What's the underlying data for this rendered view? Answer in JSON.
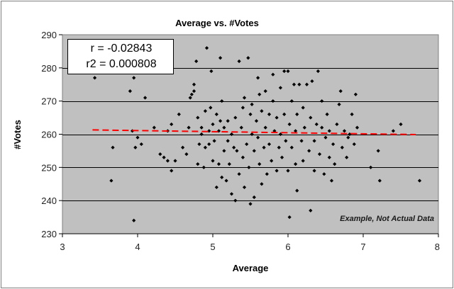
{
  "chart_data": {
    "type": "scatter",
    "title": "Average vs. #Votes",
    "xlabel": "Average",
    "ylabel": "#Votes",
    "xlim": [
      3,
      8
    ],
    "ylim": [
      230,
      290
    ],
    "xticks": [
      3,
      4,
      5,
      6,
      7,
      8
    ],
    "yticks": [
      230,
      240,
      250,
      260,
      270,
      280,
      290
    ],
    "grid": "horizontal",
    "colors": {
      "plot_bg": "#c0c0c0",
      "marker": "#000000",
      "trend": "#ff0000",
      "gridline": "#000000"
    },
    "stats": {
      "r": "r = -0.02843",
      "r2": "r2 = 0.000808"
    },
    "annotation": "Example, Not Actual Data",
    "trendline": {
      "style": "dashed",
      "x": [
        3.4,
        7.7
      ],
      "y": [
        261.3,
        259.9
      ]
    },
    "points": [
      [
        3.43,
        277
      ],
      [
        3.65,
        246
      ],
      [
        3.67,
        256
      ],
      [
        3.9,
        273
      ],
      [
        3.93,
        261
      ],
      [
        3.95,
        277
      ],
      [
        3.95,
        234
      ],
      [
        3.97,
        256
      ],
      [
        4.0,
        259
      ],
      [
        4.05,
        257
      ],
      [
        4.1,
        271
      ],
      [
        4.22,
        262
      ],
      [
        4.3,
        254
      ],
      [
        4.35,
        253
      ],
      [
        4.4,
        261
      ],
      [
        4.4,
        252
      ],
      [
        4.45,
        249
      ],
      [
        4.45,
        263
      ],
      [
        4.5,
        252
      ],
      [
        4.55,
        266
      ],
      [
        4.6,
        256
      ],
      [
        4.65,
        254
      ],
      [
        4.68,
        262
      ],
      [
        4.7,
        271
      ],
      [
        4.72,
        272
      ],
      [
        4.75,
        275
      ],
      [
        4.75,
        273
      ],
      [
        4.78,
        282
      ],
      [
        4.8,
        265
      ],
      [
        4.8,
        251
      ],
      [
        4.82,
        257
      ],
      [
        4.85,
        260
      ],
      [
        4.85,
        262
      ],
      [
        4.88,
        250
      ],
      [
        4.9,
        267
      ],
      [
        4.9,
        256
      ],
      [
        4.92,
        286
      ],
      [
        4.95,
        257
      ],
      [
        4.95,
        261
      ],
      [
        4.97,
        268
      ],
      [
        4.98,
        279
      ],
      [
        5.0,
        252
      ],
      [
        5.0,
        263
      ],
      [
        5.02,
        258
      ],
      [
        5.05,
        244
      ],
      [
        5.05,
        266
      ],
      [
        5.08,
        251
      ],
      [
        5.08,
        261
      ],
      [
        5.1,
        283
      ],
      [
        5.1,
        264
      ],
      [
        5.12,
        247
      ],
      [
        5.12,
        270
      ],
      [
        5.15,
        255
      ],
      [
        5.15,
        262
      ],
      [
        5.18,
        246
      ],
      [
        5.2,
        264
      ],
      [
        5.2,
        258
      ],
      [
        5.22,
        251
      ],
      [
        5.25,
        242
      ],
      [
        5.25,
        260
      ],
      [
        5.28,
        256
      ],
      [
        5.3,
        240
      ],
      [
        5.3,
        265
      ],
      [
        5.32,
        255
      ],
      [
        5.35,
        282
      ],
      [
        5.35,
        248
      ],
      [
        5.38,
        262
      ],
      [
        5.4,
        253
      ],
      [
        5.4,
        268
      ],
      [
        5.42,
        244
      ],
      [
        5.42,
        271
      ],
      [
        5.45,
        257
      ],
      [
        5.47,
        283
      ],
      [
        5.48,
        250
      ],
      [
        5.5,
        266
      ],
      [
        5.5,
        239
      ],
      [
        5.52,
        260
      ],
      [
        5.52,
        269
      ],
      [
        5.55,
        241
      ],
      [
        5.55,
        255
      ],
      [
        5.58,
        264
      ],
      [
        5.6,
        277
      ],
      [
        5.6,
        259
      ],
      [
        5.62,
        251
      ],
      [
        5.62,
        272
      ],
      [
        5.65,
        245
      ],
      [
        5.65,
        267
      ],
      [
        5.68,
        256
      ],
      [
        5.7,
        262
      ],
      [
        5.7,
        273
      ],
      [
        5.72,
        248
      ],
      [
        5.75,
        266
      ],
      [
        5.75,
        257
      ],
      [
        5.78,
        252
      ],
      [
        5.8,
        270
      ],
      [
        5.8,
        278
      ],
      [
        5.82,
        261
      ],
      [
        5.85,
        249
      ],
      [
        5.85,
        265
      ],
      [
        5.88,
        256
      ],
      [
        5.9,
        274
      ],
      [
        5.9,
        260
      ],
      [
        5.92,
        253
      ],
      [
        5.95,
        279
      ],
      [
        5.95,
        266
      ],
      [
        5.97,
        258
      ],
      [
        6.0,
        279
      ],
      [
        6.0,
        249
      ],
      [
        6.02,
        263
      ],
      [
        6.02,
        235
      ],
      [
        6.05,
        270
      ],
      [
        6.05,
        256
      ],
      [
        6.08,
        275
      ],
      [
        6.1,
        261
      ],
      [
        6.1,
        251
      ],
      [
        6.12,
        266
      ],
      [
        6.12,
        243
      ],
      [
        6.15,
        275
      ],
      [
        6.18,
        258
      ],
      [
        6.2,
        268
      ],
      [
        6.2,
        252
      ],
      [
        6.22,
        262
      ],
      [
        6.25,
        275
      ],
      [
        6.28,
        255
      ],
      [
        6.3,
        237
      ],
      [
        6.3,
        265
      ],
      [
        6.32,
        276
      ],
      [
        6.35,
        258
      ],
      [
        6.35,
        249
      ],
      [
        6.38,
        263
      ],
      [
        6.4,
        279
      ],
      [
        6.42,
        254
      ],
      [
        6.45,
        262
      ],
      [
        6.45,
        270
      ],
      [
        6.48,
        248
      ],
      [
        6.5,
        259
      ],
      [
        6.52,
        266
      ],
      [
        6.55,
        253
      ],
      [
        6.55,
        261
      ],
      [
        6.58,
        246
      ],
      [
        6.6,
        257
      ],
      [
        6.62,
        251
      ],
      [
        6.65,
        263
      ],
      [
        6.68,
        269
      ],
      [
        6.7,
        273
      ],
      [
        6.72,
        256
      ],
      [
        6.75,
        261
      ],
      [
        6.78,
        253
      ],
      [
        6.8,
        259
      ],
      [
        6.82,
        260
      ],
      [
        6.85,
        266
      ],
      [
        6.88,
        257
      ],
      [
        6.9,
        272
      ],
      [
        6.92,
        262
      ],
      [
        7.1,
        250
      ],
      [
        7.2,
        255
      ],
      [
        7.22,
        246
      ],
      [
        7.4,
        261
      ],
      [
        7.5,
        263
      ],
      [
        7.75,
        246
      ]
    ]
  }
}
